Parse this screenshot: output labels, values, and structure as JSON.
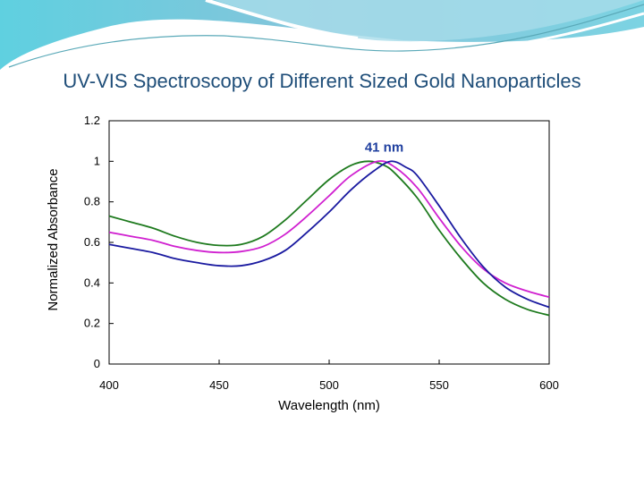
{
  "slide": {
    "title": "UV-VIS Spectroscopy of Different Sized Gold Nanoparticles"
  },
  "chart_data": {
    "type": "line",
    "title": "",
    "xlabel": "Wavelength (nm)",
    "ylabel": "Normalized Absorbance",
    "xlim": [
      400,
      600
    ],
    "ylim": [
      0,
      1.2
    ],
    "xticks": [
      "400",
      "450",
      "500",
      "550",
      "600"
    ],
    "yticks": [
      "0",
      "0.2",
      "0.4",
      "0.6",
      "0.8",
      "1",
      "1.2"
    ],
    "grid": false,
    "annotations": [
      {
        "text": "41 nm",
        "x": 525,
        "y": 1.07
      }
    ],
    "series": [
      {
        "color": "#1e7a1e",
        "x": [
          400,
          410,
          420,
          430,
          440,
          450,
          460,
          470,
          480,
          490,
          500,
          510,
          518,
          525,
          530,
          540,
          550,
          560,
          570,
          580,
          590,
          600
        ],
        "y": [
          0.73,
          0.7,
          0.67,
          0.63,
          0.6,
          0.585,
          0.59,
          0.63,
          0.71,
          0.81,
          0.91,
          0.98,
          1.0,
          0.98,
          0.94,
          0.82,
          0.66,
          0.52,
          0.4,
          0.32,
          0.27,
          0.24
        ]
      },
      {
        "color": "#d020d0",
        "x": [
          400,
          410,
          420,
          430,
          440,
          450,
          460,
          470,
          480,
          490,
          500,
          510,
          522,
          530,
          540,
          550,
          560,
          570,
          580,
          590,
          600
        ],
        "y": [
          0.65,
          0.63,
          0.61,
          0.58,
          0.56,
          0.55,
          0.555,
          0.58,
          0.64,
          0.73,
          0.83,
          0.93,
          1.0,
          0.97,
          0.87,
          0.72,
          0.58,
          0.47,
          0.4,
          0.36,
          0.33
        ]
      },
      {
        "color": "#1a1aa0",
        "x": [
          400,
          410,
          420,
          430,
          440,
          450,
          460,
          470,
          480,
          490,
          500,
          510,
          520,
          528,
          535,
          540,
          550,
          560,
          570,
          580,
          590,
          600
        ],
        "y": [
          0.59,
          0.57,
          0.55,
          0.52,
          0.5,
          0.485,
          0.485,
          0.51,
          0.56,
          0.65,
          0.75,
          0.86,
          0.95,
          1.0,
          0.97,
          0.93,
          0.78,
          0.62,
          0.48,
          0.38,
          0.32,
          0.28
        ]
      }
    ]
  }
}
